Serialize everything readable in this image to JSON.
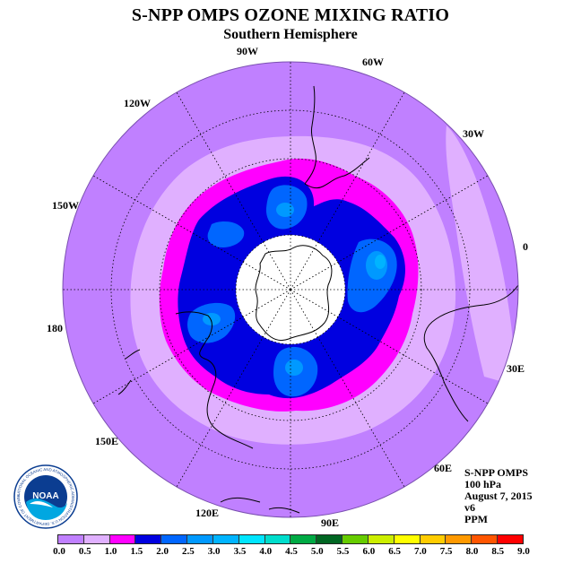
{
  "title": "S-NPP OMPS OZONE MIXING RATIO",
  "subtitle": "Southern Hemisphere",
  "longitude_labels": [
    "90W",
    "60W",
    "30W",
    "0",
    "30E",
    "60E",
    "90E",
    "120E",
    "150E",
    "180",
    "150W",
    "120W"
  ],
  "info": {
    "instrument": "S-NPP OMPS",
    "level": "100 hPa",
    "date": "August 7, 2015",
    "version": "v6",
    "units": "PPM"
  },
  "logo": {
    "text": "NOAA",
    "ring_text": "NATIONAL OCEANIC AND ATMOSPHERIC ADMINISTRATION  U.S. DEPARTMENT OF COMMERCE"
  },
  "colorbar": {
    "ticks": [
      "0.0",
      "0.5",
      "1.0",
      "1.5",
      "2.0",
      "2.5",
      "3.0",
      "3.5",
      "4.0",
      "4.5",
      "5.0",
      "5.5",
      "6.0",
      "6.5",
      "7.0",
      "7.5",
      "8.0",
      "8.5",
      "9.0"
    ],
    "colors": [
      "#c080ff",
      "#e0b0ff",
      "#ff00ff",
      "#0000e0",
      "#0066ff",
      "#0099ff",
      "#00b4ff",
      "#00e5ff",
      "#00ddcc",
      "#00aa44",
      "#006622",
      "#66cc00",
      "#ccee00",
      "#ffff00",
      "#ffcc00",
      "#ff9900",
      "#ff5500",
      "#ff0000",
      "#996633"
    ]
  }
}
